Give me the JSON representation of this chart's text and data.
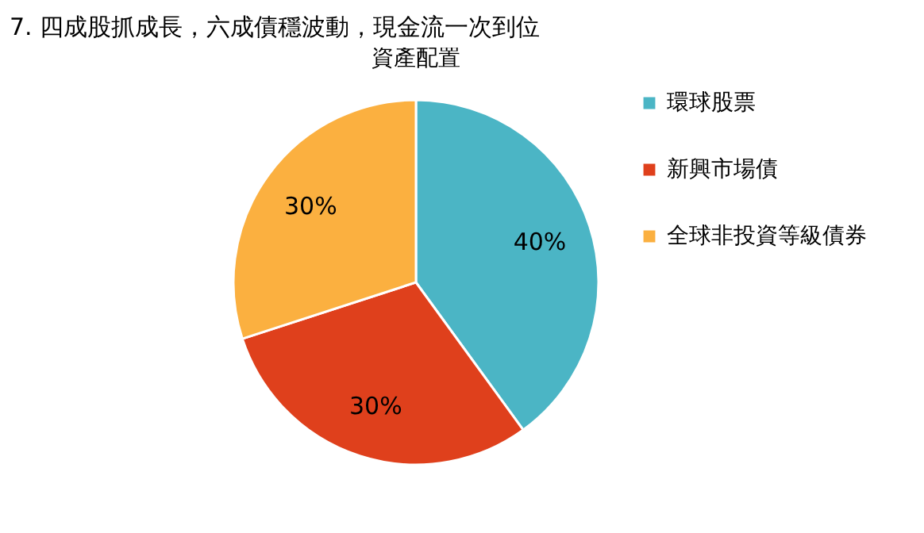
{
  "chart_data": {
    "type": "pie",
    "title": "7. 四成股抓成長，六成債穩波動，現金流一次到位",
    "subtitle": "資產配置",
    "categories": [
      "環球股票",
      "新興市場債",
      "全球非投資等級債券"
    ],
    "values": [
      40,
      30,
      30
    ],
    "colors": [
      "#4bb5c5",
      "#df401c",
      "#fbb040"
    ],
    "value_labels": [
      "40%",
      "30%",
      "30%"
    ],
    "legend": "right"
  }
}
